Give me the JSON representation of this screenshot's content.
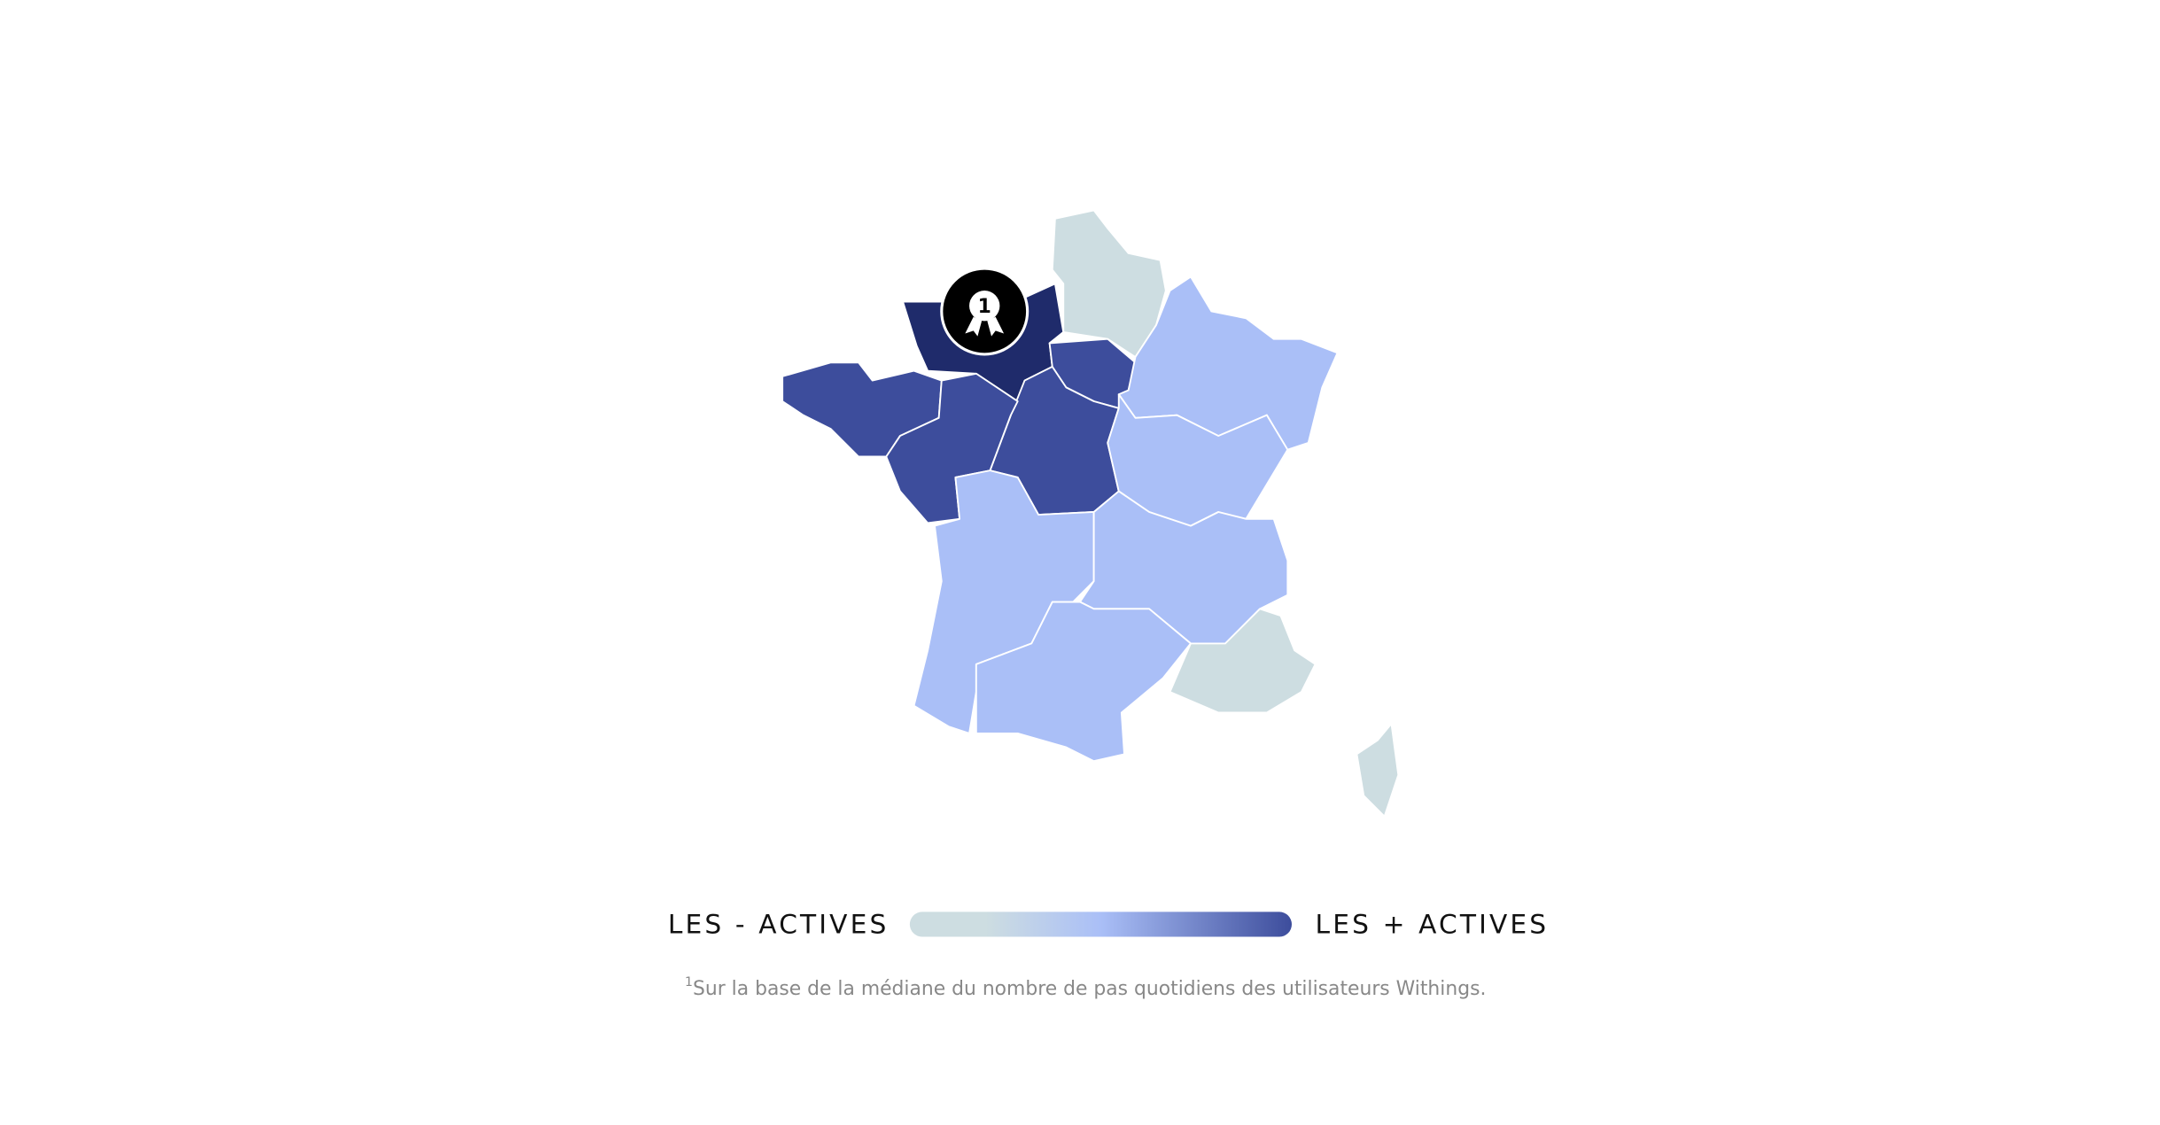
{
  "badge": {
    "label": "1"
  },
  "legend": {
    "low_label": "LES - ACTIVES",
    "high_label": "LES + ACTIVES"
  },
  "footnote": {
    "marker": "1",
    "text": "Sur la base de la médiane du nombre de pas quotidiens des utilisateurs Withings."
  }
}
